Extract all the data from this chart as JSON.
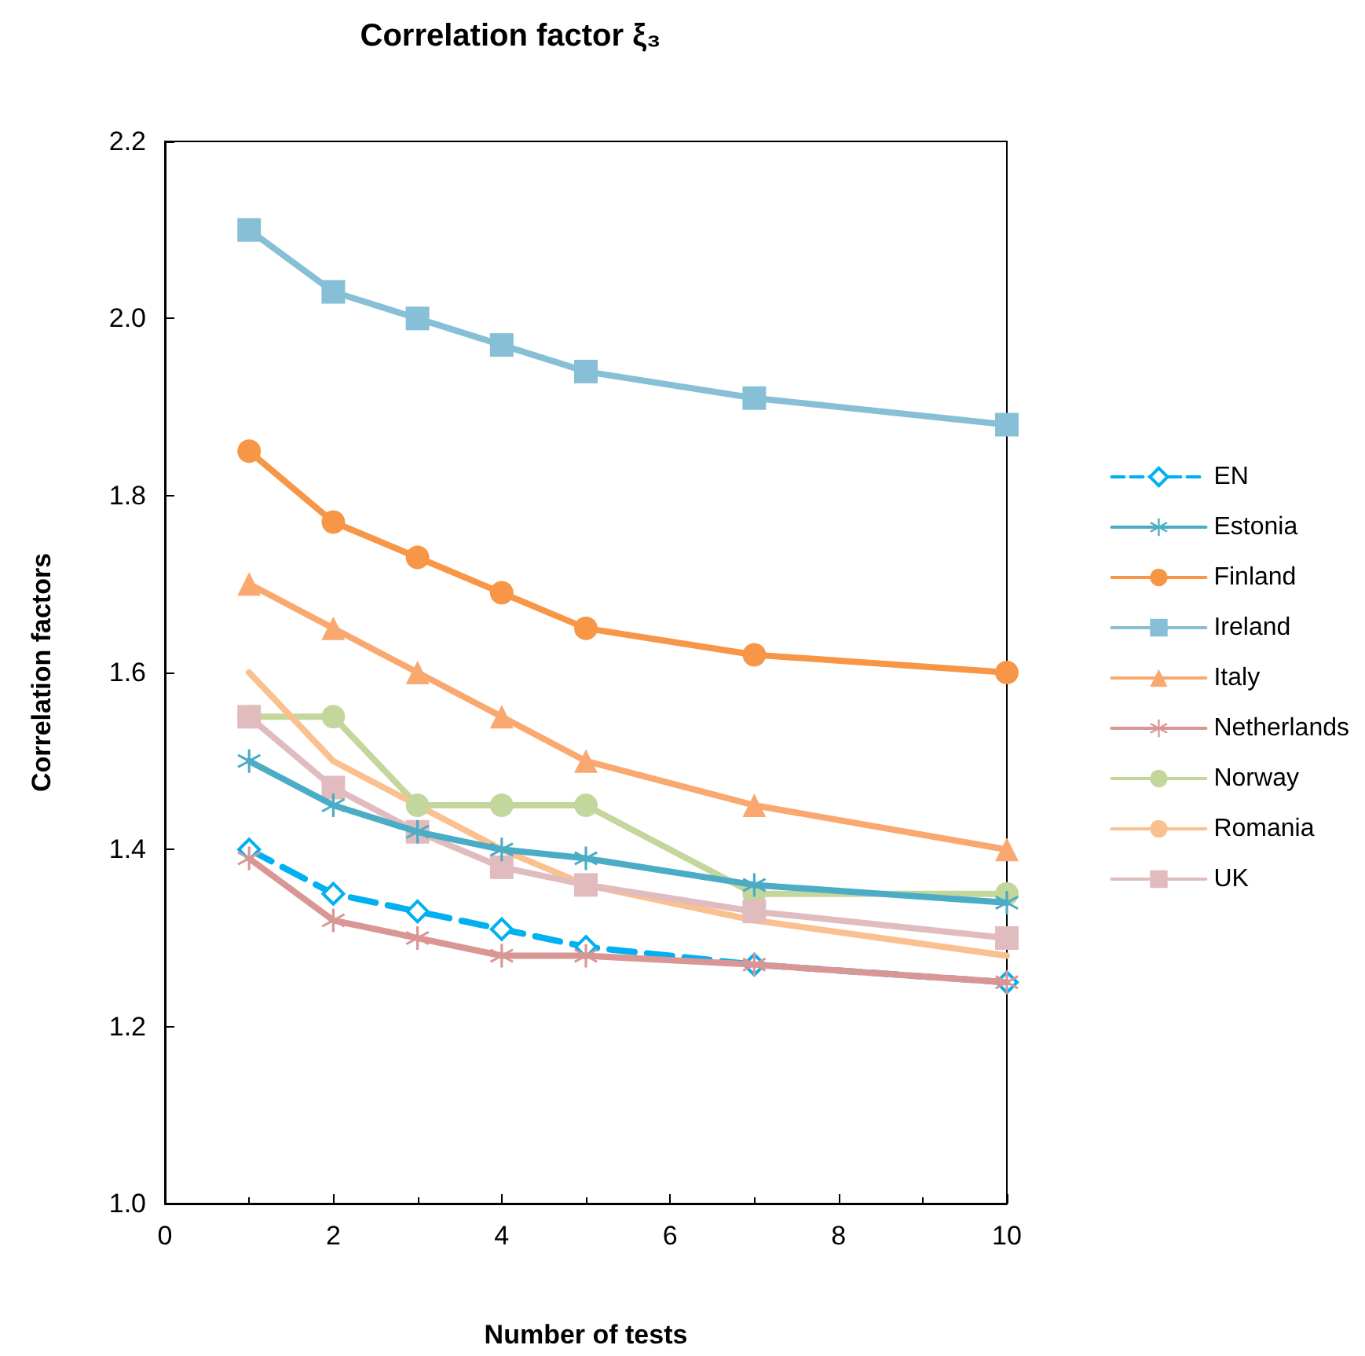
{
  "chart_data": {
    "type": "line",
    "title": "Correlation factor ξ₃",
    "xlabel": "Number of tests",
    "ylabel": "Correlation factors",
    "x": [
      1,
      2,
      3,
      4,
      5,
      7,
      10
    ],
    "series": [
      {
        "name": "EN",
        "color": "#00b0f0",
        "marker": "diamond",
        "line_style": "dashed",
        "values": [
          1.4,
          1.35,
          1.33,
          1.31,
          1.29,
          1.27,
          1.25
        ]
      },
      {
        "name": "Estonia",
        "color": "#4bacc6",
        "marker": "cross",
        "values": [
          1.5,
          1.45,
          1.42,
          1.4,
          1.39,
          1.36,
          1.34
        ]
      },
      {
        "name": "Finland",
        "color": "#f79646",
        "marker": "circle",
        "values": [
          1.85,
          1.77,
          1.73,
          1.69,
          1.65,
          1.62,
          1.6
        ]
      },
      {
        "name": "Ireland",
        "color": "#86bfd6",
        "marker": "square",
        "values": [
          2.1,
          2.03,
          2.0,
          1.97,
          1.94,
          1.91,
          1.88
        ]
      },
      {
        "name": "Italy",
        "color": "#f9a870",
        "marker": "triangle",
        "values": [
          1.7,
          1.65,
          1.6,
          1.55,
          1.5,
          1.45,
          1.4
        ]
      },
      {
        "name": "Netherlands",
        "color": "#d99694",
        "marker": "cross",
        "values": [
          1.39,
          1.32,
          1.3,
          1.28,
          1.28,
          1.27,
          1.25
        ]
      },
      {
        "name": "Norway",
        "color": "#c3d69b",
        "marker": "circle",
        "values": [
          1.55,
          1.55,
          1.45,
          1.45,
          1.45,
          1.35,
          1.35
        ]
      },
      {
        "name": "Romania",
        "color": "#fac090",
        "marker": "none",
        "values": [
          1.6,
          1.5,
          1.45,
          1.4,
          1.36,
          1.32,
          1.28
        ]
      },
      {
        "name": "UK",
        "color": "#e0bcbf",
        "marker": "square",
        "values": [
          1.55,
          1.47,
          1.42,
          1.38,
          1.36,
          1.33,
          1.3
        ]
      }
    ],
    "xlim": [
      0,
      10
    ],
    "xticks": [
      0,
      2,
      4,
      6,
      8,
      10
    ],
    "ylim": [
      1.0,
      2.2
    ],
    "yticks": [
      {
        "value": 1.0,
        "label": "1.0"
      },
      1.2,
      1.4,
      1.6,
      1.8,
      {
        "value": 2.0,
        "label": "2.0"
      },
      2.2
    ],
    "grid": false,
    "legend": "right",
    "line_style": "solid"
  }
}
